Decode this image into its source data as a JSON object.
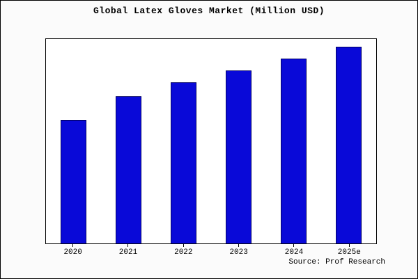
{
  "title": "Global Latex Gloves Market (Million USD)",
  "source": "Source: Prof Research",
  "colors": {
    "bar_fill": "#0909d8",
    "bar_border": "#000066",
    "axis": "#000000",
    "background": "#fbfbfb",
    "plot_background": "#ffffff"
  },
  "chart_data": {
    "type": "bar",
    "title": "Global Latex Gloves Market (Million USD)",
    "categories": [
      "2020",
      "2021",
      "2022",
      "2023",
      "2024",
      "2025e"
    ],
    "values": [
      63,
      75,
      82,
      88,
      94,
      100
    ],
    "xlabel": "",
    "ylabel": "",
    "ylim": [
      0,
      104
    ],
    "grid": false,
    "legend": false,
    "note": "values estimated from bar heights relative to tallest bar = 100; no y-axis tick labels shown",
    "annotations": [
      "Source: Prof Research"
    ]
  }
}
